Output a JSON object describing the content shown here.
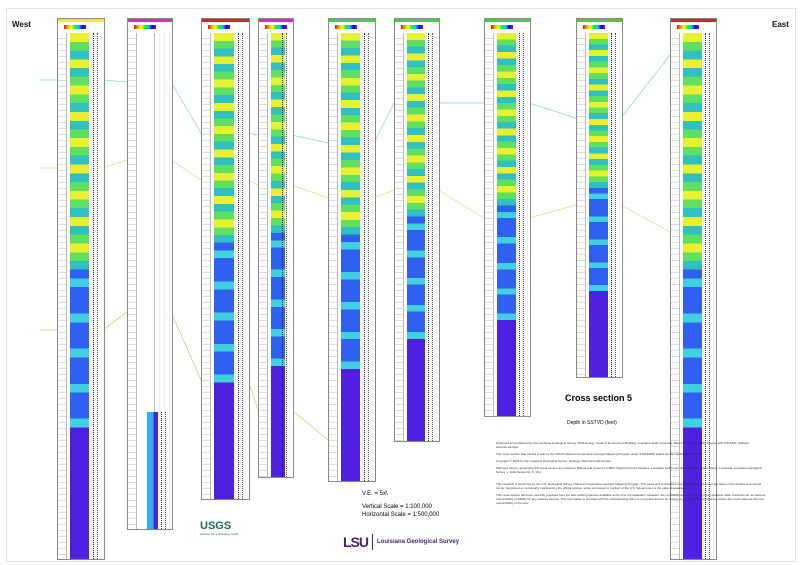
{
  "labels": {
    "west": "West",
    "east": "East"
  },
  "title": "Cross section 5",
  "subtitle": "Depth in SSTVD (feet)",
  "scales": {
    "ve": "V.E. = 5x\\",
    "vertical": "Vertical Scale = 1:100,000",
    "horizontal": "Horizontal Scale = 1:500,000"
  },
  "notes": [
    "Produced and published by the Louisiana Geological Survey, 3079 Energy, Coast & Environment Building, Louisiana State University, Baton Rouge, LA 70803. Phone: 225-578-5320; Website: www.lsu.edu/lgs/",
    "This cross section was funded in part by the USGS National Cooperative Geologic Mapping Program under STATEMAP award number G24AC00333, 2024.",
    "Copyright © 2025 by the Louisiana Geological Survey. Geology: Akintoboia Akintomide",
    "Well tops used in generating this cross section are based on Bebout and Gutierrez (1983): Regional Cross Sections, Louisiana Gulf Coast (Eastern Part), Baton Rouge, Louisiana: Louisiana Geological Survey, v. Folio Series No. 6, 10 p.",
    "This research is supported by the U.S. Geological Survey, National Cooperative Geologic Mapping Program. The views and conclusions contained in this document are those of the authors and should not be interpreted as necessarily representing the official policies, either expressed or implied, of the U.S. Government or the state of Louisiana.",
    "This cross section has been carefully prepared from the best existing sources available at the time of preparation. However, the Louisiana Geological Survey and Louisiana State University do not assume responsibility or liability for any reliance thereon. This information is provided with the understanding that it is not guaranteed to be correct or complete, and conclusions drawn from such data are the sole responsibility of the user."
  ],
  "logos": {
    "usgs": "USGS",
    "usgs_tagline": "science for a changing world",
    "lsu": "LSU",
    "lsu_name": "Louisiana Geological Survey"
  },
  "colors": {
    "upper_horizon": "#7fe0d0",
    "middle_horizon": "#c8e890",
    "lower_horizon": "#e8c070"
  },
  "wells": [
    {
      "header_color": "#f5e642",
      "log": "full"
    },
    {
      "header_color": "#e020e0",
      "log": "bottom"
    },
    {
      "header_color": "#e02020",
      "log": "full"
    },
    {
      "header_color": "#e020e0",
      "log": "full"
    },
    {
      "header_color": "#40d040",
      "log": "full"
    },
    {
      "header_color": "#40d040",
      "log": "full"
    },
    {
      "header_color": "#40d040",
      "log": "full"
    },
    {
      "header_color": "#40d040",
      "log": "full"
    },
    {
      "header_color": "#e02020",
      "log": "full"
    }
  ]
}
